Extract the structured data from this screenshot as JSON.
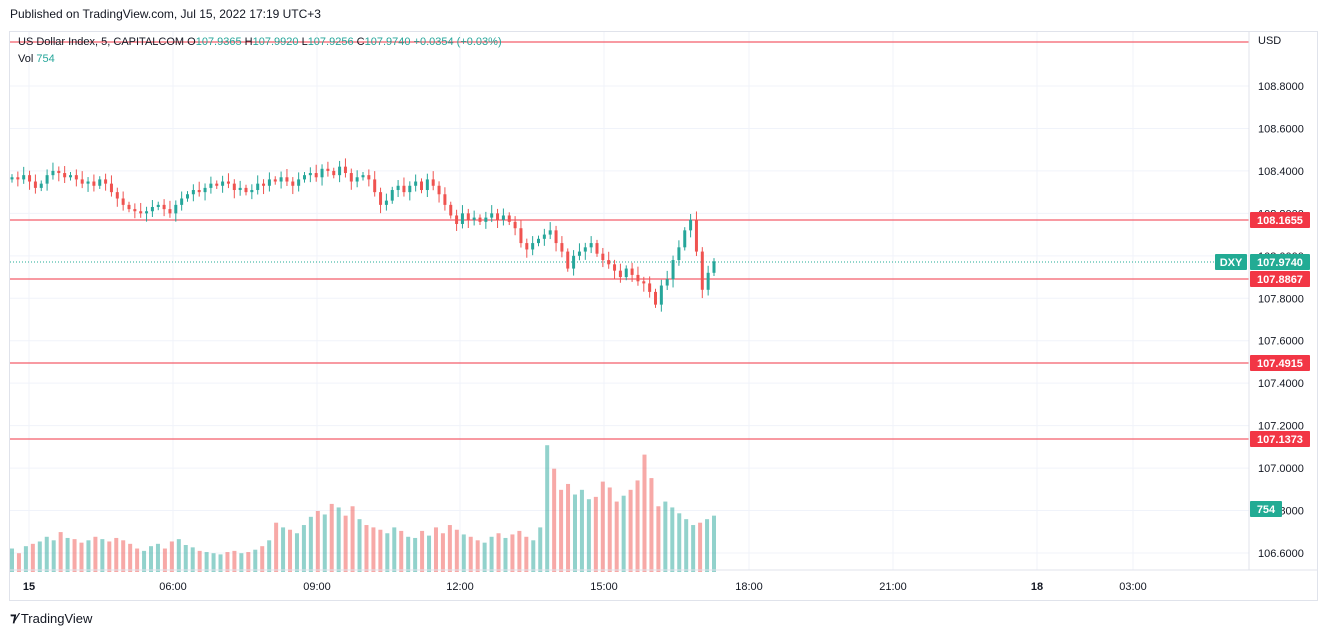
{
  "header": {
    "published": "Published on TradingView.com, Jul 15, 2022 17:19 UTC+3"
  },
  "legend": {
    "symbol": "US Dollar Index, 5, CAPITALCOM",
    "o_label": "O",
    "o": "107.9365",
    "h_label": "H",
    "h": "107.9920",
    "l_label": "L",
    "l": "107.9256",
    "c_label": "C",
    "c": "107.9740",
    "change": "+0.0354 (+0.03%)",
    "vol_label": "Vol",
    "vol": "754"
  },
  "footer": {
    "brand": "TradingView"
  },
  "colors": {
    "up": "#26a69a",
    "down": "#ef5350",
    "level": "#f23645",
    "last": "#22ab94",
    "grid": "#f0f3fa"
  },
  "chart_data": {
    "type": "candlestick",
    "currency": "USD",
    "price_axis": {
      "ticks": [
        108.8,
        108.6,
        108.4,
        108.2,
        108.0,
        107.8,
        107.6,
        107.4,
        107.2,
        107.0,
        106.8,
        106.6
      ],
      "tick_labels": [
        "108.8000",
        "108.6000",
        "108.4000",
        "108.2000",
        "108.0000",
        "107.8000",
        "107.6000",
        "107.4000",
        "107.2000",
        "107.0000",
        "106.8000",
        "106.6000"
      ]
    },
    "time_axis": {
      "labels": [
        "15",
        "06:00",
        "09:00",
        "12:00",
        "15:00",
        "18:00",
        "21:00",
        "18",
        "03:00"
      ]
    },
    "horizontal_levels": [
      {
        "value": 108.1655,
        "label": "108.1655"
      },
      {
        "value": 107.8867,
        "label": "107.8867"
      },
      {
        "value": 107.4915,
        "label": "107.4915"
      },
      {
        "value": 107.1373,
        "label": "107.1373"
      }
    ],
    "top_level": {
      "value": 109.0
    },
    "last_price": {
      "symbol": "DXY",
      "value": 107.974,
      "label": "107.9740"
    },
    "volume_badge": "754",
    "price_close_path": [
      108.37,
      108.36,
      108.38,
      108.35,
      108.32,
      108.34,
      108.38,
      108.4,
      108.39,
      108.37,
      108.38,
      108.36,
      108.34,
      108.35,
      108.33,
      108.36,
      108.34,
      108.3,
      108.27,
      108.24,
      108.22,
      108.21,
      108.2,
      108.21,
      108.23,
      108.24,
      108.22,
      108.2,
      108.24,
      108.27,
      108.29,
      108.31,
      108.3,
      108.32,
      108.34,
      108.33,
      108.35,
      108.34,
      108.31,
      108.32,
      108.3,
      108.31,
      108.34,
      108.33,
      108.36,
      108.35,
      108.37,
      108.35,
      108.33,
      108.36,
      108.38,
      108.39,
      108.37,
      108.41,
      108.4,
      108.38,
      108.42,
      108.39,
      108.35,
      108.37,
      108.38,
      108.36,
      108.3,
      108.24,
      108.26,
      108.31,
      108.33,
      108.3,
      108.33,
      108.35,
      108.31,
      108.36,
      108.33,
      108.29,
      108.24,
      108.19,
      108.15,
      108.2,
      108.17,
      108.18,
      108.16,
      108.18,
      108.2,
      108.17,
      108.19,
      108.16,
      108.13,
      108.06,
      108.03,
      108.06,
      108.08,
      108.1,
      108.12,
      108.06,
      108.02,
      107.94,
      108.0,
      108.02,
      108.04,
      108.06,
      108.01,
      107.98,
      107.96,
      107.93,
      107.9,
      107.94,
      107.91,
      107.88,
      107.87,
      107.83,
      107.77,
      107.86,
      107.89,
      107.98,
      108.04,
      108.12,
      108.17,
      108.02,
      107.84,
      107.92,
      107.974
    ],
    "volume_bars": [
      20,
      16,
      22,
      24,
      26,
      30,
      27,
      34,
      29,
      28,
      25,
      27,
      30,
      28,
      26,
      29,
      27,
      24,
      20,
      18,
      22,
      24,
      20,
      26,
      28,
      23,
      21,
      18,
      17,
      16,
      15,
      17,
      18,
      16,
      17,
      19,
      22,
      27,
      42,
      38,
      36,
      33,
      40,
      47,
      52,
      49,
      58,
      55,
      48,
      56,
      45,
      40,
      38,
      36,
      33,
      38,
      35,
      30,
      29,
      35,
      31,
      38,
      33,
      40,
      36,
      32,
      30,
      27,
      25,
      30,
      33,
      29,
      32,
      35,
      30,
      27,
      38,
      108,
      88,
      70,
      75,
      66,
      70,
      62,
      64,
      77,
      72,
      60,
      65,
      70,
      78,
      100,
      80,
      56,
      60,
      55,
      50,
      45,
      40,
      42,
      45,
      48
    ]
  }
}
